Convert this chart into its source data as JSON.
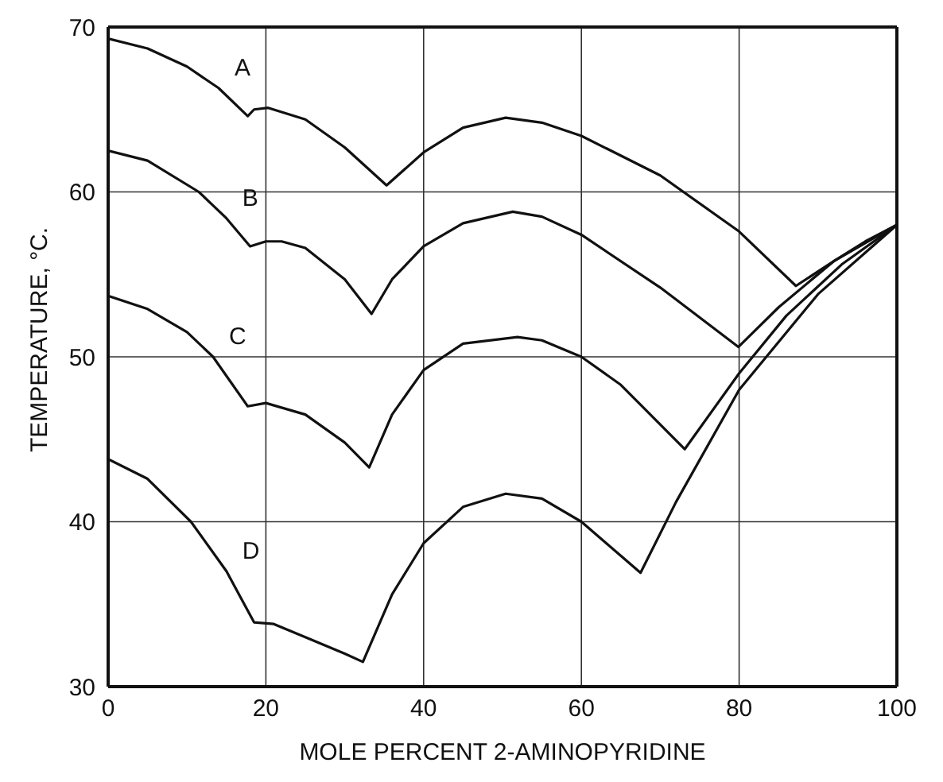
{
  "chart_data": {
    "type": "line",
    "xlabel": "MOLE PERCENT 2-AMINOPYRIDINE",
    "ylabel": "TEMPERATURE, °C.",
    "xlim": [
      0,
      100
    ],
    "xticks": [
      0,
      20,
      40,
      60,
      80,
      100
    ],
    "ylim": [
      30,
      70
    ],
    "yticks": [
      30,
      40,
      50,
      60,
      70
    ],
    "grid": true,
    "legend": false,
    "marker": "none",
    "line_style": "solid",
    "series": [
      {
        "name": "A",
        "color": "#111111",
        "x": [
          0,
          5,
          10,
          14,
          17.7,
          18.5,
          20.3,
          25,
          30,
          35.3,
          40,
          45,
          50.4,
          55,
          60,
          70,
          80,
          87.2,
          92,
          96,
          100
        ],
        "values": [
          69.3,
          68.7,
          67.6,
          66.3,
          64.6,
          65.0,
          65.1,
          64.4,
          62.7,
          60.4,
          62.4,
          63.9,
          64.5,
          64.2,
          63.4,
          61.0,
          57.6,
          54.3,
          55.8,
          57.0,
          58.0
        ]
      },
      {
        "name": "B",
        "color": "#111111",
        "x": [
          0,
          5,
          11.5,
          15,
          18,
          20,
          22,
          25,
          30,
          33.4,
          36,
          40,
          45,
          51.3,
          55,
          60,
          70,
          79.9,
          85,
          92,
          100
        ],
        "values": [
          62.5,
          61.9,
          60.0,
          58.4,
          56.7,
          57.0,
          57.0,
          56.6,
          54.7,
          52.6,
          54.7,
          56.7,
          58.1,
          58.8,
          58.5,
          57.4,
          54.2,
          50.6,
          53.0,
          55.8,
          58.0
        ]
      },
      {
        "name": "C",
        "color": "#111111",
        "x": [
          0,
          5,
          10,
          13.3,
          17.7,
          20,
          25,
          30,
          33.1,
          36,
          40,
          45,
          51.9,
          55,
          60,
          65,
          73.1,
          80,
          86,
          93,
          100
        ],
        "values": [
          53.7,
          52.9,
          51.5,
          50.0,
          47.0,
          47.2,
          46.5,
          44.8,
          43.3,
          46.5,
          49.2,
          50.8,
          51.2,
          51.0,
          50.0,
          48.3,
          44.4,
          49.0,
          52.5,
          55.6,
          58.0
        ]
      },
      {
        "name": "D",
        "color": "#111111",
        "x": [
          0,
          5,
          10.5,
          15,
          18.5,
          21,
          25,
          30,
          32.3,
          36,
          40,
          45,
          50.4,
          55,
          60,
          67.5,
          72,
          80,
          90,
          100
        ],
        "values": [
          43.8,
          42.6,
          40.0,
          37.0,
          33.9,
          33.8,
          33.0,
          32.0,
          31.5,
          35.6,
          38.7,
          40.9,
          41.7,
          41.4,
          40.0,
          36.9,
          41.2,
          48.0,
          53.8,
          58.0
        ]
      }
    ]
  }
}
